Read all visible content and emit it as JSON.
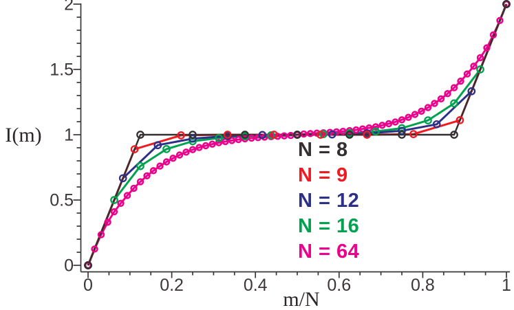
{
  "figure": {
    "background": "#ffffff",
    "axis_color": "#39363a",
    "tick_label_color": "#3c3638",
    "x_axis": {
      "label": "m/N",
      "tick_labels": [
        "0",
        "0.2",
        "0.4",
        "0.6",
        "0.8",
        "1"
      ],
      "tick_values": [
        0,
        0.2,
        0.4,
        0.6,
        0.8,
        1
      ],
      "minor_step": 0.05,
      "range": [
        0,
        1
      ]
    },
    "y_axis": {
      "label": "I(m)",
      "tick_labels": [
        "0",
        "0.5",
        "1",
        "1.5",
        "2"
      ],
      "tick_values": [
        0,
        0.5,
        1,
        1.5,
        2
      ],
      "minor_step": 0.1,
      "range": [
        0,
        2
      ]
    }
  },
  "legend": {
    "items": [
      {
        "label": "N = 8",
        "color": "#343031"
      },
      {
        "label": "N = 9",
        "color": "#ee1b23"
      },
      {
        "label": "N = 12",
        "color": "#2c3187"
      },
      {
        "label": "N = 16",
        "color": "#00a24f"
      },
      {
        "label": "N = 64",
        "color": "#ec008c"
      }
    ]
  },
  "chart_data": {
    "type": "line",
    "title": "",
    "xlabel": "m/N",
    "ylabel": "I(m)",
    "xlim": [
      0,
      1
    ],
    "ylim": [
      0,
      2
    ],
    "grid": false,
    "legend_position": "inside-lower-right",
    "x_definition": "x = m/N for m = 0..N",
    "series": [
      {
        "name": "N = 8",
        "N": 8,
        "color": "#343031",
        "marker": "open-circle",
        "I_values": [
          0,
          1,
          1,
          1,
          1,
          1,
          1,
          1,
          2
        ]
      },
      {
        "name": "N = 9",
        "N": 9,
        "color": "#ee1b23",
        "marker": "open-circle",
        "I_values": [
          0,
          0.889,
          0.995,
          1,
          1,
          1,
          1,
          1.005,
          1.111,
          2
        ]
      },
      {
        "name": "N = 12",
        "N": 12,
        "color": "#2c3187",
        "marker": "open-circle",
        "I_values": [
          0,
          0.667,
          0.92,
          0.97,
          0.99,
          0.998,
          1,
          1.002,
          1.01,
          1.03,
          1.08,
          1.333,
          2
        ]
      },
      {
        "name": "N = 16",
        "N": 16,
        "color": "#00a24f",
        "marker": "open-circle",
        "I_values": [
          0,
          0.5,
          0.76,
          0.89,
          0.95,
          0.975,
          0.988,
          0.995,
          1,
          1.005,
          1.012,
          1.025,
          1.05,
          1.11,
          1.24,
          1.5,
          2
        ]
      },
      {
        "name": "N = 64",
        "N": 64,
        "color": "#ec008c",
        "marker": "open-circle",
        "I_values": [
          0,
          0.125,
          0.235,
          0.33,
          0.41,
          0.475,
          0.535,
          0.59,
          0.64,
          0.685,
          0.725,
          0.76,
          0.792,
          0.82,
          0.845,
          0.867,
          0.886,
          0.902,
          0.916,
          0.928,
          0.939,
          0.948,
          0.956,
          0.963,
          0.969,
          0.974,
          0.978,
          0.982,
          0.985,
          0.988,
          0.991,
          0.994,
          1.0,
          1.006,
          1.009,
          1.012,
          1.015,
          1.018,
          1.022,
          1.026,
          1.031,
          1.037,
          1.044,
          1.052,
          1.061,
          1.072,
          1.084,
          1.098,
          1.114,
          1.133,
          1.155,
          1.18,
          1.208,
          1.24,
          1.275,
          1.315,
          1.36,
          1.41,
          1.465,
          1.525,
          1.59,
          1.665,
          1.765,
          1.875,
          2
        ]
      }
    ]
  }
}
